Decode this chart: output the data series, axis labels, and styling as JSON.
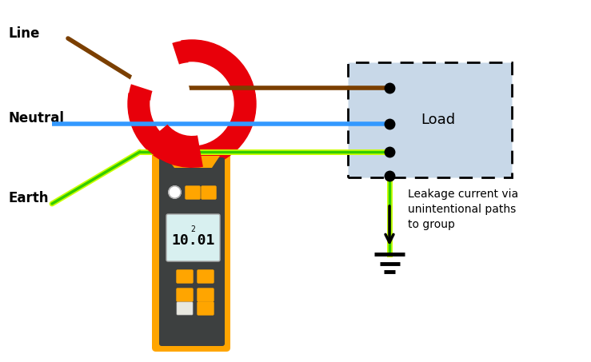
{
  "bg_color": "#ffffff",
  "line_color": "#7B3F00",
  "neutral_color": "#3399FF",
  "earth_color_outer": "#CCFF00",
  "earth_color_inner": "#33CC00",
  "clamp_body_color": "#FFA500",
  "clamp_dark_color": "#3d4040",
  "clamp_ring_color": "#E8000A",
  "load_box_color": "#c8d8e8",
  "load_box_border": "#000000",
  "arrow_color": "#000000",
  "text_color": "#000000",
  "display_bg": "#d8f0f0",
  "display_text": "10.01",
  "display_sub": "2",
  "button_orange": "#FFA500",
  "button_white": "#e8e8e0",
  "label_line": "Line",
  "label_neutral": "Neutral",
  "label_earth": "Earth",
  "label_load": "Load",
  "label_leakage": "Leakage current via\nunintentional paths\nto group"
}
